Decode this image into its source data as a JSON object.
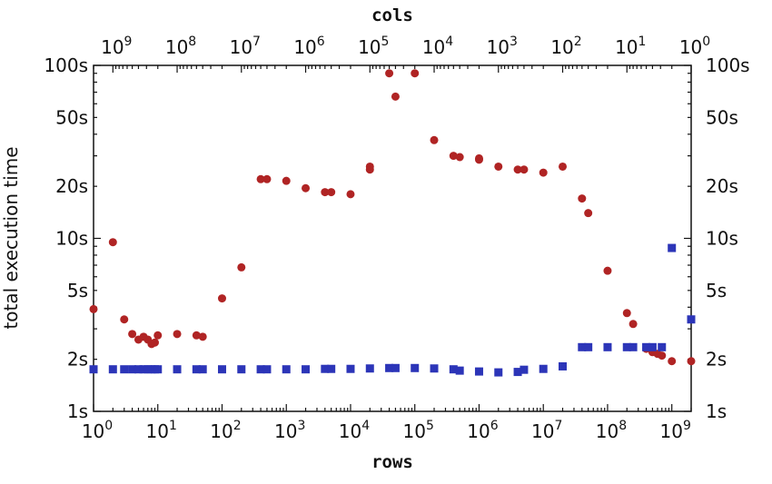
{
  "chart_data": {
    "type": "scatter",
    "title": "",
    "xlabel": "rows",
    "x2label": "cols",
    "ylabel": "total execution time",
    "xscale": "log",
    "yscale": "log",
    "xlim": [
      1,
      2000000000
    ],
    "x2lim": [
      2000000000,
      1
    ],
    "ylim": [
      1,
      100
    ],
    "grid": false,
    "legend": "none",
    "x_ticks": [
      {
        "value": 1,
        "base": "10",
        "exp": "0"
      },
      {
        "value": 10,
        "base": "10",
        "exp": "1"
      },
      {
        "value": 100,
        "base": "10",
        "exp": "2"
      },
      {
        "value": 1000,
        "base": "10",
        "exp": "3"
      },
      {
        "value": 10000,
        "base": "10",
        "exp": "4"
      },
      {
        "value": 100000,
        "base": "10",
        "exp": "5"
      },
      {
        "value": 1000000,
        "base": "10",
        "exp": "6"
      },
      {
        "value": 10000000,
        "base": "10",
        "exp": "7"
      },
      {
        "value": 100000000,
        "base": "10",
        "exp": "8"
      },
      {
        "value": 1000000000,
        "base": "10",
        "exp": "9"
      }
    ],
    "x2_ticks": [
      {
        "value": 1000000000,
        "base": "10",
        "exp": "9"
      },
      {
        "value": 100000000,
        "base": "10",
        "exp": "8"
      },
      {
        "value": 10000000,
        "base": "10",
        "exp": "7"
      },
      {
        "value": 1000000,
        "base": "10",
        "exp": "6"
      },
      {
        "value": 100000,
        "base": "10",
        "exp": "5"
      },
      {
        "value": 10000,
        "base": "10",
        "exp": "4"
      },
      {
        "value": 1000,
        "base": "10",
        "exp": "3"
      },
      {
        "value": 100,
        "base": "10",
        "exp": "2"
      },
      {
        "value": 10,
        "base": "10",
        "exp": "1"
      },
      {
        "value": 1,
        "base": "10",
        "exp": "0"
      }
    ],
    "y_ticks": [
      {
        "value": 1,
        "label": "1s"
      },
      {
        "value": 2,
        "label": "2s"
      },
      {
        "value": 5,
        "label": "5s"
      },
      {
        "value": 10,
        "label": "10s"
      },
      {
        "value": 20,
        "label": "20s"
      },
      {
        "value": 50,
        "label": "50s"
      },
      {
        "value": 100,
        "label": "100s"
      }
    ],
    "series": [
      {
        "marker": "circle",
        "color": "#b02424",
        "points": [
          [
            1,
            3.9
          ],
          [
            2,
            9.5
          ],
          [
            3,
            3.4
          ],
          [
            4,
            2.8
          ],
          [
            5,
            2.6
          ],
          [
            6,
            2.7
          ],
          [
            7,
            2.6
          ],
          [
            8,
            2.45
          ],
          [
            9,
            2.5
          ],
          [
            10,
            2.75
          ],
          [
            20,
            2.8
          ],
          [
            40,
            2.75
          ],
          [
            50,
            2.7
          ],
          [
            100,
            4.5
          ],
          [
            200,
            6.8
          ],
          [
            400,
            22
          ],
          [
            500,
            22
          ],
          [
            1000,
            21.5
          ],
          [
            2000,
            19.5
          ],
          [
            4000,
            18.5
          ],
          [
            5000,
            18.5
          ],
          [
            10000,
            18
          ],
          [
            20000,
            25
          ],
          [
            20000,
            26
          ],
          [
            40000,
            90
          ],
          [
            50000,
            66
          ],
          [
            100000,
            90
          ],
          [
            200000,
            37
          ],
          [
            400000,
            30
          ],
          [
            500000,
            29.5
          ],
          [
            1000000,
            29
          ],
          [
            1000000,
            28.5
          ],
          [
            2000000,
            26
          ],
          [
            4000000,
            25
          ],
          [
            5000000,
            25
          ],
          [
            10000000,
            24
          ],
          [
            20000000,
            26
          ],
          [
            40000000,
            17
          ],
          [
            50000000,
            14
          ],
          [
            100000000,
            6.5
          ],
          [
            200000000,
            3.7
          ],
          [
            250000000,
            3.2
          ],
          [
            400000000,
            2.3
          ],
          [
            500000000,
            2.2
          ],
          [
            600000000,
            2.15
          ],
          [
            700000000,
            2.1
          ],
          [
            1000000000,
            1.95
          ],
          [
            2000000000,
            1.95
          ]
        ]
      },
      {
        "marker": "square",
        "color": "#2c35b8",
        "points": [
          [
            1,
            1.75
          ],
          [
            2,
            1.75
          ],
          [
            3,
            1.75
          ],
          [
            4,
            1.75
          ],
          [
            5,
            1.75
          ],
          [
            6,
            1.75
          ],
          [
            7,
            1.75
          ],
          [
            8,
            1.75
          ],
          [
            9,
            1.75
          ],
          [
            10,
            1.75
          ],
          [
            20,
            1.75
          ],
          [
            40,
            1.75
          ],
          [
            50,
            1.75
          ],
          [
            100,
            1.75
          ],
          [
            200,
            1.75
          ],
          [
            400,
            1.75
          ],
          [
            500,
            1.75
          ],
          [
            1000,
            1.75
          ],
          [
            2000,
            1.75
          ],
          [
            4000,
            1.76
          ],
          [
            5000,
            1.76
          ],
          [
            10000,
            1.76
          ],
          [
            20000,
            1.77
          ],
          [
            40000,
            1.78
          ],
          [
            50000,
            1.78
          ],
          [
            100000,
            1.78
          ],
          [
            200000,
            1.77
          ],
          [
            400000,
            1.75
          ],
          [
            500000,
            1.72
          ],
          [
            1000000,
            1.7
          ],
          [
            2000000,
            1.68
          ],
          [
            4000000,
            1.69
          ],
          [
            5000000,
            1.74
          ],
          [
            10000000,
            1.76
          ],
          [
            20000000,
            1.82
          ],
          [
            40000000,
            2.35
          ],
          [
            50000000,
            2.35
          ],
          [
            100000000,
            2.35
          ],
          [
            200000000,
            2.35
          ],
          [
            250000000,
            2.35
          ],
          [
            400000000,
            2.35
          ],
          [
            500000000,
            2.35
          ],
          [
            700000000,
            2.35
          ],
          [
            1000000000,
            8.8
          ],
          [
            2000000000,
            3.4
          ]
        ]
      }
    ]
  }
}
